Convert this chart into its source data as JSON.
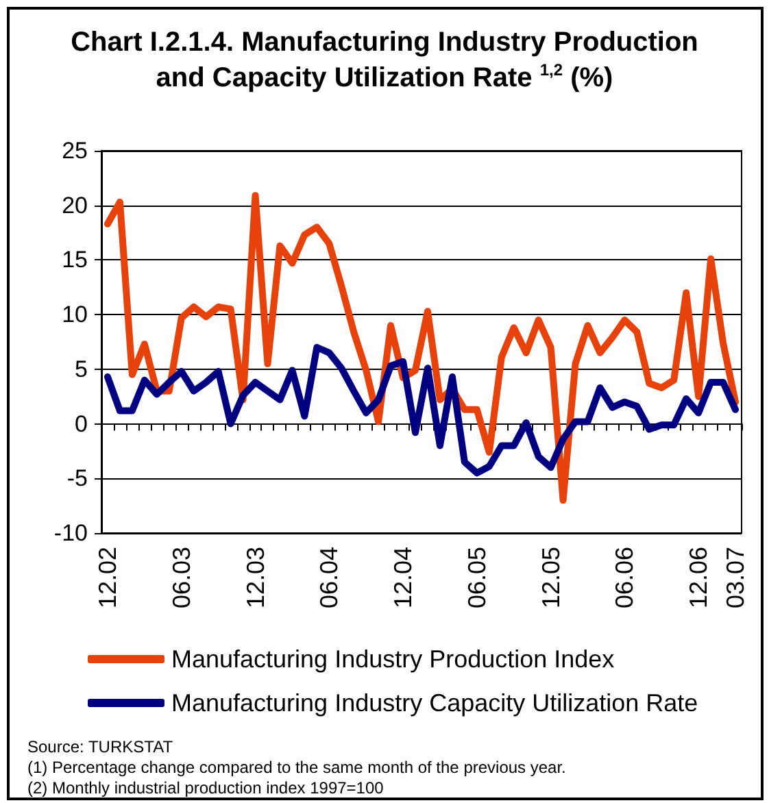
{
  "chart_data": {
    "type": "line",
    "title": "Chart I.2.1.4. Manufacturing Industry Production and Capacity Utilization Rate $^{1,2}$ (%)",
    "categories": [
      "12.02",
      null,
      null,
      null,
      null,
      null,
      "06.03",
      null,
      null,
      null,
      null,
      null,
      "12.03",
      null,
      null,
      null,
      null,
      null,
      "06.04",
      null,
      null,
      null,
      null,
      null,
      "12.04",
      null,
      null,
      null,
      null,
      null,
      "06.05",
      null,
      null,
      null,
      null,
      null,
      "12.05",
      null,
      null,
      null,
      null,
      null,
      "06.06",
      null,
      null,
      null,
      null,
      null,
      "12.06",
      null,
      null,
      "03.07"
    ],
    "series": [
      {
        "name": "Manufacturing Industry Production Index",
        "color": "#e8420c",
        "values": [
          18.3,
          20.3,
          4.5,
          7.3,
          3.0,
          3.0,
          9.7,
          10.7,
          9.8,
          10.7,
          10.5,
          2.2,
          20.9,
          5.5,
          16.3,
          14.7,
          17.3,
          18.0,
          16.5,
          12.6,
          8.4,
          4.9,
          0.2,
          9.0,
          4.2,
          4.9,
          10.3,
          2.2,
          3.2,
          1.3,
          1.3,
          -2.6,
          6.1,
          8.8,
          6.5,
          9.5,
          7.0,
          -7.0,
          5.5,
          9.0,
          6.5,
          7.9,
          9.5,
          8.4,
          3.7,
          3.3,
          4.0,
          12.0,
          2.5,
          15.1,
          7.4,
          2.0
        ]
      },
      {
        "name": "Manufacturing Industry Capacity Utilization Rate",
        "color": "#000080",
        "values": [
          4.3,
          1.2,
          1.2,
          4.0,
          2.7,
          3.8,
          4.8,
          3.0,
          3.8,
          4.8,
          0.0,
          2.6,
          3.8,
          3.0,
          2.2,
          4.9,
          0.7,
          7.0,
          6.5,
          5.1,
          3.0,
          1.0,
          2.2,
          5.3,
          5.7,
          -0.8,
          5.1,
          -2.0,
          4.3,
          -3.5,
          -4.5,
          -3.9,
          -2.0,
          -2.0,
          0.1,
          -3.0,
          -4.0,
          -1.4,
          0.2,
          0.2,
          3.3,
          1.5,
          2.0,
          1.6,
          -0.5,
          -0.1,
          -0.1,
          2.3,
          1.0,
          3.8,
          3.8,
          1.3
        ]
      }
    ],
    "ylim": [
      -10,
      25
    ],
    "yticks": [
      -10,
      -5,
      0,
      5,
      10,
      15,
      20,
      25
    ],
    "grid": "y",
    "legend": "bottom",
    "marker": "none",
    "line_style": "solid",
    "annotations": [
      "Source: TURKSTAT",
      "(1) Percentage change compared to the same month of the previous year.",
      "(2) Monthly industrial production index 1997=100"
    ]
  }
}
